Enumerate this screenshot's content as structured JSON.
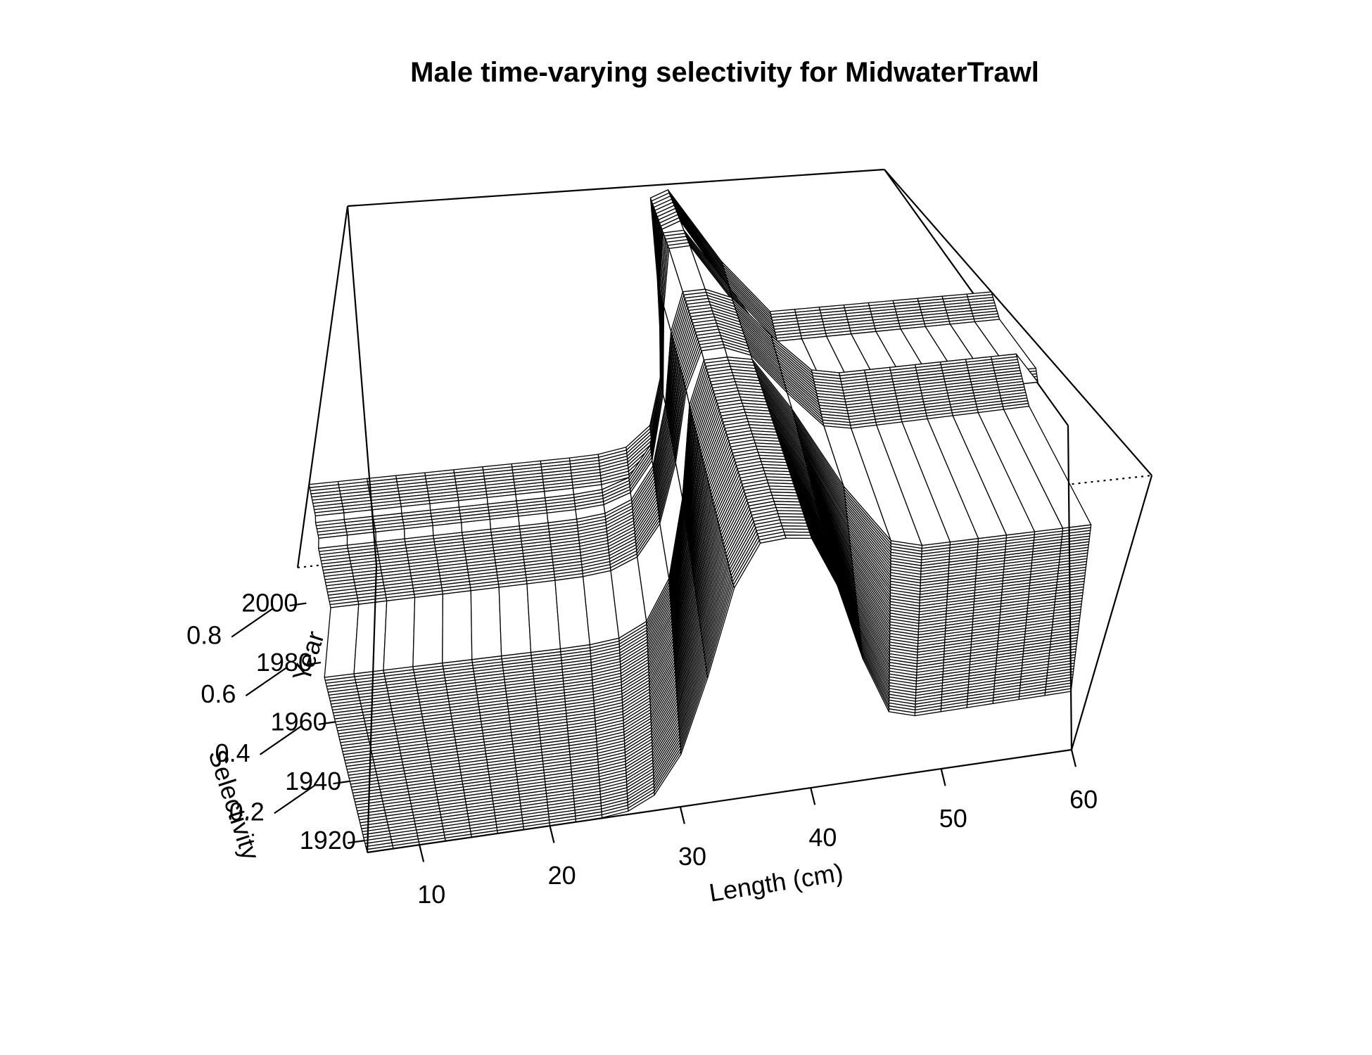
{
  "chart_data": {
    "type": "surface",
    "title": "Male time-varying selectivity for MidwaterTrawl",
    "xlabel": "Length (cm)",
    "ylabel": "Year",
    "zlabel": "Selectivity",
    "x_ticks": [
      10,
      20,
      30,
      40,
      50,
      60
    ],
    "y_ticks": [
      1920,
      1940,
      1960,
      1980,
      2000
    ],
    "z_ticks": [
      0.2,
      0.4,
      0.6,
      0.8
    ],
    "xlim": [
      6,
      60
    ],
    "ylim": [
      1916,
      2012
    ],
    "zlim": [
      0,
      1
    ],
    "x_step": 2,
    "blocks": [
      {
        "years": [
          1916,
          1975
        ],
        "peak_length": 36.0,
        "sd": 3.4,
        "floor": 0.0,
        "plateau_length": 39.2,
        "plateau": 0.82,
        "descend_length": 47.0,
        "tail": 0.18
      },
      {
        "years": [
          1976,
          1995
        ],
        "peak_length": 36.2,
        "sd": 3.5,
        "floor": 0.2,
        "plateau_length": 38.6,
        "plateau": 0.84,
        "descend_length": 45.0,
        "tail": 0.55
      },
      {
        "years": [
          1996,
          2001
        ],
        "peak_length": 36.5,
        "sd": 3.4,
        "floor": 0.22,
        "plateau_length": 37.6,
        "plateau": 0.97,
        "descend_length": 43.5,
        "tail": 0.45
      },
      {
        "years": [
          2002,
          2012
        ],
        "peak_length": 37.0,
        "sd": 3.2,
        "floor": 0.23,
        "plateau_length": 37.4,
        "plateau": 1.0,
        "descend_length": 42.0,
        "tail": 0.6
      }
    ]
  }
}
